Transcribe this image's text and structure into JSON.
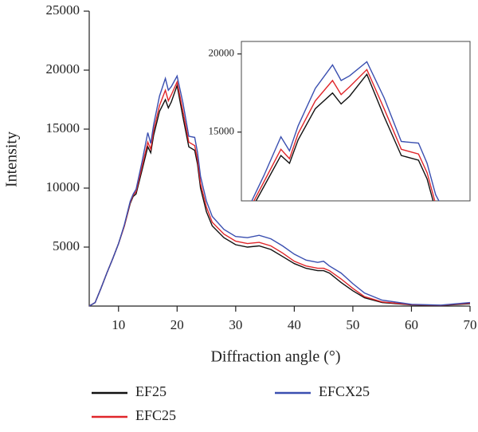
{
  "chart_data": [
    {
      "type": "line",
      "xlabel": "Diffraction angle (°)",
      "ylabel": "Intensity",
      "x": [
        5,
        6,
        7,
        8,
        9,
        10,
        11,
        12,
        12.5,
        13,
        14,
        15,
        15.5,
        16,
        17,
        18,
        18.5,
        19,
        20,
        21,
        22,
        23,
        23.5,
        24,
        25,
        26,
        28,
        30,
        32,
        34,
        36,
        38,
        40,
        42,
        44,
        45,
        46,
        48,
        50,
        52,
        55,
        60,
        65,
        70
      ],
      "series": [
        {
          "name": "EF25",
          "color": "#111111",
          "values": [
            0,
            300,
            1500,
            2800,
            4000,
            5300,
            6800,
            8700,
            9300,
            9500,
            11500,
            13500,
            13000,
            14500,
            16500,
            17500,
            16800,
            17300,
            18700,
            16000,
            13500,
            13200,
            12000,
            10000,
            8000,
            6800,
            5800,
            5200,
            5000,
            5100,
            4800,
            4200,
            3600,
            3200,
            3000,
            3000,
            2800,
            2000,
            1300,
            700,
            300,
            100,
            50,
            200
          ]
        },
        {
          "name": "EFC25",
          "color": "#e0262a",
          "values": [
            0,
            300,
            1500,
            2800,
            4000,
            5300,
            6800,
            8800,
            9400,
            9700,
            11800,
            13900,
            13300,
            14900,
            17000,
            18300,
            17400,
            17900,
            19000,
            16500,
            13900,
            13600,
            12400,
            10400,
            8400,
            7100,
            6100,
            5500,
            5300,
            5400,
            5100,
            4500,
            3800,
            3400,
            3200,
            3200,
            3000,
            2300,
            1500,
            800,
            350,
            120,
            60,
            250
          ]
        },
        {
          "name": "EFCX25",
          "color": "#3a4fb0",
          "values": [
            0,
            300,
            1500,
            2800,
            4000,
            5300,
            6900,
            8900,
            9500,
            9900,
            12200,
            14700,
            13800,
            15400,
            17800,
            19300,
            18300,
            18600,
            19500,
            17200,
            14400,
            14300,
            13000,
            11000,
            8900,
            7600,
            6500,
            5900,
            5800,
            6000,
            5700,
            5100,
            4400,
            3900,
            3700,
            3800,
            3400,
            2800,
            1900,
            1100,
            500,
            150,
            80,
            300
          ]
        }
      ],
      "xlim": [
        5,
        70
      ],
      "ylim": [
        0,
        25000
      ],
      "xticks": [
        10,
        20,
        30,
        40,
        50,
        60,
        70
      ],
      "yticks": [
        5000,
        10000,
        15000,
        20000,
        25000
      ]
    },
    {
      "type": "line",
      "xlim": [
        12.7,
        26
      ],
      "ylim": [
        10600,
        20800
      ],
      "yticks": [
        15000,
        20000
      ]
    }
  ]
}
